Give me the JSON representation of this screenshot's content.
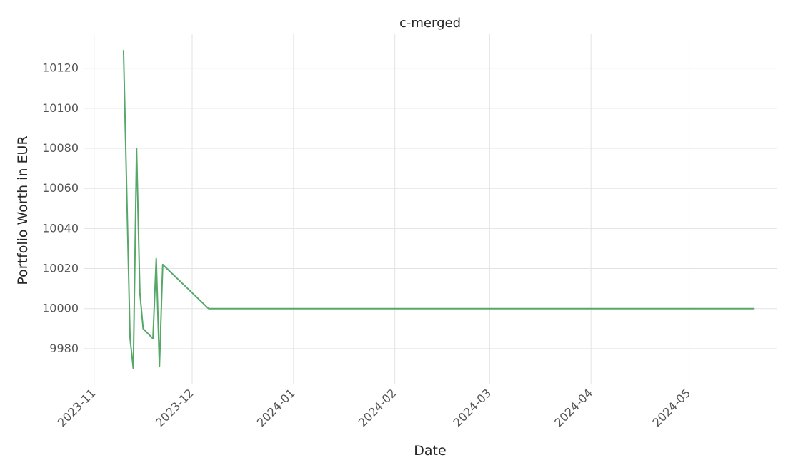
{
  "chart_data": {
    "type": "line",
    "title": "c-merged",
    "xlabel": "Date",
    "ylabel": "Portfolio Worth in EUR",
    "grid": true,
    "color": "#55a868",
    "xlim": [
      "2023-10-29",
      "2024-05-28"
    ],
    "ylim": [
      9962.5,
      10137
    ],
    "x_ticks": [
      "2023-11-01",
      "2023-12-01",
      "2024-01-01",
      "2024-02-01",
      "2024-03-01",
      "2024-04-01",
      "2024-05-01"
    ],
    "x_tick_labels": [
      "2023-11",
      "2023-12",
      "2024-01",
      "2024-02",
      "2024-03",
      "2024-04",
      "2024-05"
    ],
    "y_ticks": [
      9980,
      10000,
      10020,
      10040,
      10060,
      10080,
      10100,
      10120
    ],
    "series": [
      {
        "x": [
          "2023-11-10",
          "2023-11-12",
          "2023-11-13",
          "2023-11-14",
          "2023-11-15",
          "2023-11-16",
          "2023-11-19",
          "2023-11-20",
          "2023-11-21",
          "2023-11-22",
          "2023-12-06",
          "2024-05-21"
        ],
        "values": [
          10129,
          9985,
          9970,
          10080,
          10008,
          9990,
          9985,
          10025,
          9971,
          10022,
          10000,
          10000
        ]
      }
    ]
  }
}
